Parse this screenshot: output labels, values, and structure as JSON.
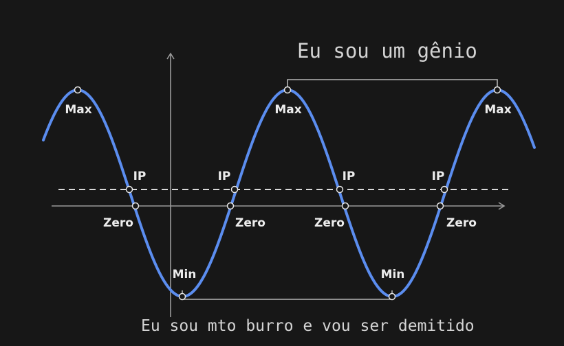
{
  "annotations": {
    "top_text": "Eu sou um gênio",
    "bottom_text": "Eu sou mto burro e vou ser demitido"
  },
  "point_labels": {
    "max": "Max",
    "min": "Min",
    "zero": "Zero",
    "inflection": "IP"
  },
  "colors": {
    "background": "#171717",
    "curve": "#5b8def",
    "axes": "#9a9a9a",
    "dashed_line": "#d9d9d9",
    "text": "#ececec"
  }
}
